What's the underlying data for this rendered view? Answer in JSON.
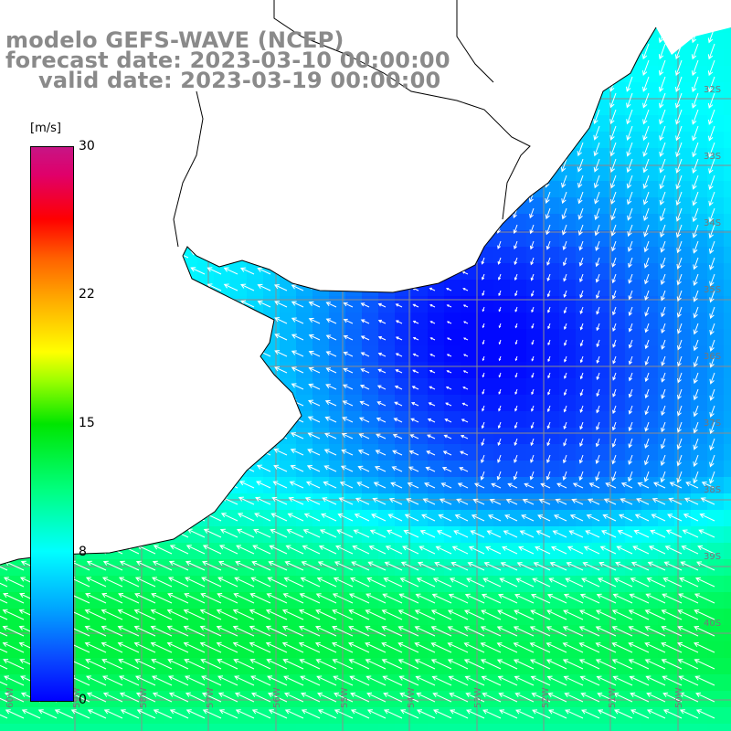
{
  "header": {
    "line1": "modelo GEFS-WAVE (NCEP)",
    "line2": "forecast date: 2023-03-10 00:00:00",
    "line3": "valid date: 2023-03-19 00:00:00"
  },
  "colorbar": {
    "unit": "[m/s]",
    "ticks": [
      {
        "label": "30",
        "value": 30
      },
      {
        "label": "22",
        "value": 22
      },
      {
        "label": "15",
        "value": 15
      },
      {
        "label": "8",
        "value": 8
      },
      {
        "label": "0",
        "value": 0
      }
    ]
  },
  "axis_labels": {
    "lat": [
      "32S",
      "33S",
      "34S",
      "35S",
      "36S",
      "37S",
      "38S",
      "39S",
      "40S"
    ],
    "lon": [
      "60W",
      "59W",
      "58W",
      "57W",
      "56W",
      "55W",
      "54W",
      "53W",
      "52W",
      "51W",
      "50W"
    ]
  },
  "colors": {
    "land": "#ffffff",
    "grid": "#8c8c8c",
    "coast": "#000000",
    "arrow": "#ffffff",
    "header_text": "#8a8a8a"
  }
}
